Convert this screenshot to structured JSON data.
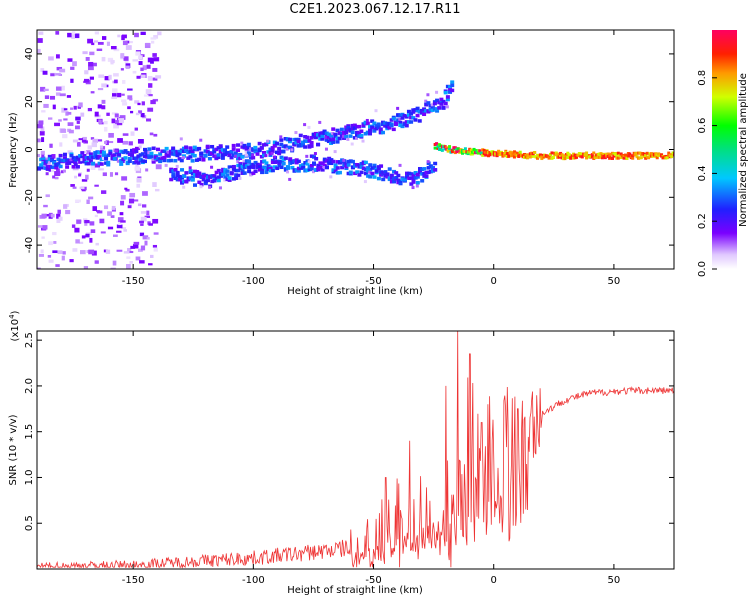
{
  "title": "C2E1.2023.067.12.17.R11",
  "colors": {
    "snr_line": "#ee3333",
    "frame": "#000000",
    "background": "#ffffff"
  },
  "chart_data": [
    {
      "type": "heatmap",
      "name": "spectrogram",
      "xlabel": "Height of straight line (km)",
      "ylabel": "Frequency (Hz)",
      "xlim": [
        -190,
        75
      ],
      "ylim": [
        -50,
        50
      ],
      "xticks": [
        -150,
        -100,
        -50,
        0,
        50
      ],
      "yticks": [
        -40,
        -20,
        0,
        20,
        40
      ],
      "colorbar": {
        "label": "Normalized spectral amplitude",
        "range": [
          0.0,
          1.0
        ],
        "ticks": [
          0.0,
          0.2,
          0.4,
          0.6,
          0.8
        ],
        "colormap": "rainbow (white-violet-blue-cyan-green-yellow-red-magenta)"
      },
      "features": [
        {
          "name": "noise-region",
          "x_range": [
            -190,
            -140
          ],
          "freq_range": [
            -50,
            50
          ],
          "amplitude": 0.05
        },
        {
          "name": "upper-track",
          "points": [
            [
              -190,
              -5
            ],
            [
              -150,
              -2
            ],
            [
              -100,
              0
            ],
            [
              -75,
              5
            ],
            [
              -50,
              10
            ],
            [
              -35,
              14
            ],
            [
              -22,
              20
            ],
            [
              -18,
              28
            ]
          ],
          "amplitude": 0.3
        },
        {
          "name": "lower-track",
          "points": [
            [
              -135,
              -10
            ],
            [
              -120,
              -12
            ],
            [
              -100,
              -6
            ],
            [
              -75,
              -5
            ],
            [
              -50,
              -8
            ],
            [
              -40,
              -12
            ],
            [
              -30,
              -10
            ],
            [
              -25,
              -5
            ]
          ],
          "amplitude": 0.3
        },
        {
          "name": "merged-track",
          "points": [
            [
              -25,
              2
            ],
            [
              -15,
              0
            ],
            [
              0,
              -1
            ],
            [
              20,
              -2
            ],
            [
              40,
              -2
            ],
            [
              75,
              -2
            ]
          ],
          "amplitude": 0.85
        }
      ]
    },
    {
      "type": "line",
      "name": "snr",
      "xlabel": "Height of straight line (km)",
      "ylabel": "SNR (10 * v/v)",
      "yscale_label": "(x10",
      "yscale_exponent": "4",
      "yscale_suffix": ")",
      "xlim": [
        -190,
        75
      ],
      "ylim": [
        0,
        2.6
      ],
      "xticks": [
        -150,
        -100,
        -50,
        0,
        50
      ],
      "yticks": [
        0.5,
        1.0,
        1.5,
        2.0,
        2.5
      ],
      "series": [
        {
          "name": "SNR",
          "x": [
            -190,
            -150,
            -120,
            -100,
            -80,
            -60,
            -50,
            -40,
            -30,
            -20,
            -15,
            -10,
            -5,
            0,
            10,
            20,
            30,
            40,
            50,
            60,
            75
          ],
          "values": [
            0.03,
            0.04,
            0.09,
            0.12,
            0.17,
            0.23,
            0.32,
            0.42,
            0.55,
            0.75,
            1.0,
            1.25,
            1.3,
            1.4,
            1.55,
            1.7,
            1.85,
            1.92,
            1.94,
            1.95,
            1.95
          ],
          "spikes": [
            [
              -45,
              1.0
            ],
            [
              -35,
              1.4
            ],
            [
              -20,
              2.0
            ],
            [
              -15,
              2.6
            ],
            [
              -10,
              2.35
            ],
            [
              -5,
              1.6
            ],
            [
              5,
              1.75
            ],
            [
              10,
              1.75
            ]
          ]
        }
      ]
    }
  ]
}
